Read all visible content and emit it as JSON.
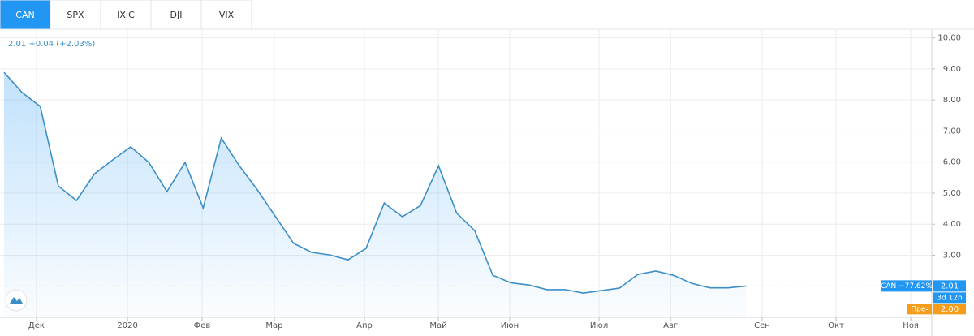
{
  "tabs": [
    "CAN",
    "SPX",
    "IXIC",
    "DJI",
    "VIX"
  ],
  "quote": "2.01 +0.04 (+2.03%)",
  "last_badge": "CAN −77.62%",
  "countdown": "3d 12h",
  "premarket_label": "Пре-",
  "premarket_price": "2.00",
  "chart_data": {
    "type": "line",
    "x": [
      0,
      1,
      2,
      3,
      4,
      5,
      6,
      7,
      8,
      9,
      10,
      11,
      12,
      13,
      14,
      15,
      16,
      17,
      18,
      19,
      20,
      21,
      22,
      23,
      24,
      25,
      26,
      27,
      28,
      29,
      30,
      31,
      32,
      33,
      34,
      35,
      36,
      37,
      38,
      39,
      40,
      41
    ],
    "series": [
      {
        "color": "#3b8fc6",
        "values": [
          8.89,
          8.24,
          7.79,
          5.23,
          4.76,
          5.62,
          6.07,
          6.49,
          5.99,
          5.05,
          5.99,
          4.52,
          6.77,
          5.88,
          5.1,
          4.24,
          3.38,
          3.09,
          3.01,
          2.85,
          3.22,
          4.68,
          4.24,
          4.6,
          5.88,
          4.36,
          3.79,
          2.35,
          2.11,
          2.04,
          1.89,
          1.89,
          1.78,
          1.86,
          1.94,
          2.38,
          2.49,
          2.35,
          2.09,
          1.95,
          1.95,
          2.01
        ]
      }
    ],
    "xlim": [
      0,
      51.25
    ],
    "xticks": [
      {
        "value": 1.79,
        "label": "Дек"
      },
      {
        "value": 6.82,
        "label": "2020"
      },
      {
        "value": 10.94,
        "label": "Фев"
      },
      {
        "value": 14.93,
        "label": "Мар"
      },
      {
        "value": 19.91,
        "label": "Апр"
      },
      {
        "value": 23.99,
        "label": "Май"
      },
      {
        "value": 27.93,
        "label": "Июн"
      },
      {
        "value": 32.87,
        "label": "Июл"
      },
      {
        "value": 36.82,
        "label": "Авг"
      },
      {
        "value": 41.88,
        "label": "Сен"
      },
      {
        "value": 45.96,
        "label": "Окт"
      },
      {
        "value": 50.09,
        "label": "Ноя"
      }
    ],
    "ylim": [
      1,
      10.2
    ],
    "yticks": [
      {
        "value": 3,
        "label": "3.00"
      },
      {
        "value": 4,
        "label": "4.00"
      },
      {
        "value": 5,
        "label": "5.00"
      },
      {
        "value": 6,
        "label": "6.00"
      },
      {
        "value": 7,
        "label": "7.00"
      },
      {
        "value": 8,
        "label": "8.00"
      },
      {
        "value": 9,
        "label": "9.00"
      },
      {
        "value": 10,
        "label": "10.00"
      }
    ],
    "grid": true
  }
}
